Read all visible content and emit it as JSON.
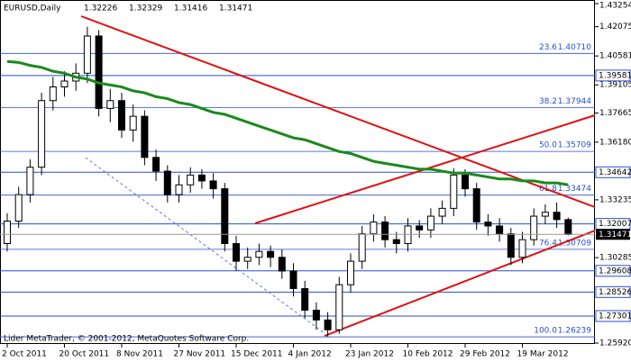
{
  "chart_data": {
    "type": "candlestick",
    "title": "EURUSD,Daily",
    "footer": "Lider MetaTrader, © 2001-2012, MetaQuotes Software Corp.",
    "open": [
      1.31,
      1.3215,
      1.335,
      1.349,
      1.383,
      1.39,
      1.393,
      1.397,
      1.416,
      1.379,
      1.383,
      1.368,
      1.375,
      1.354,
      1.347,
      1.335,
      1.34,
      1.345,
      1.342,
      1.338,
      1.31,
      1.301,
      1.303,
      1.306,
      1.303,
      1.296,
      1.287,
      1.276,
      1.271,
      1.266,
      1.289,
      1.301,
      1.315,
      1.321,
      1.312,
      1.31,
      1.319,
      1.317,
      1.324,
      1.328,
      1.345,
      1.338,
      1.321,
      1.319,
      1.315,
      1.303,
      1.312,
      1.324,
      1.326,
      1.32226
    ],
    "high": [
      1.3255,
      1.339,
      1.353,
      1.387,
      1.395,
      1.398,
      1.402,
      1.4207,
      1.419,
      1.389,
      1.387,
      1.381,
      1.378,
      1.358,
      1.35,
      1.345,
      1.349,
      1.348,
      1.346,
      1.341,
      1.314,
      1.308,
      1.31,
      1.309,
      1.307,
      1.3,
      1.291,
      1.28,
      1.275,
      1.293,
      1.305,
      1.319,
      1.325,
      1.324,
      1.316,
      1.323,
      1.322,
      1.328,
      1.332,
      1.3485,
      1.348,
      1.341,
      1.325,
      1.323,
      1.318,
      1.316,
      1.328,
      1.33,
      1.331,
      1.32329
    ],
    "low": [
      1.306,
      1.318,
      1.331,
      1.345,
      1.378,
      1.385,
      1.388,
      1.392,
      1.375,
      1.372,
      1.364,
      1.362,
      1.35,
      1.342,
      1.331,
      1.331,
      1.336,
      1.338,
      1.333,
      1.306,
      1.296,
      1.297,
      1.299,
      1.298,
      1.292,
      1.283,
      1.272,
      1.266,
      1.2624,
      1.264,
      1.285,
      1.297,
      1.311,
      1.308,
      1.305,
      1.306,
      1.313,
      1.313,
      1.32,
      1.324,
      1.334,
      1.317,
      1.314,
      1.311,
      1.299,
      1.3,
      1.309,
      1.32,
      1.318,
      1.31416
    ],
    "close": [
      1.3215,
      1.335,
      1.349,
      1.383,
      1.39,
      1.393,
      1.397,
      1.416,
      1.379,
      1.383,
      1.368,
      1.375,
      1.354,
      1.347,
      1.335,
      1.34,
      1.345,
      1.342,
      1.338,
      1.31,
      1.301,
      1.303,
      1.306,
      1.303,
      1.296,
      1.287,
      1.276,
      1.271,
      1.266,
      1.289,
      1.301,
      1.315,
      1.321,
      1.312,
      1.31,
      1.319,
      1.317,
      1.324,
      1.328,
      1.345,
      1.338,
      1.321,
      1.319,
      1.315,
      1.303,
      1.312,
      1.324,
      1.326,
      1.32226,
      1.31471
    ],
    "moving_average": {
      "color": "#1a8a1a",
      "values": [
        1.403,
        1.4025,
        1.401,
        1.4,
        1.398,
        1.397,
        1.395,
        1.394,
        1.392,
        1.391,
        1.39,
        1.388,
        1.387,
        1.385,
        1.384,
        1.382,
        1.381,
        1.379,
        1.377,
        1.376,
        1.374,
        1.372,
        1.37,
        1.368,
        1.366,
        1.364,
        1.363,
        1.361,
        1.359,
        1.357,
        1.356,
        1.354,
        1.352,
        1.351,
        1.35,
        1.349,
        1.348,
        1.348,
        1.347,
        1.346,
        1.346,
        1.345,
        1.344,
        1.343,
        1.343,
        1.342,
        1.342,
        1.341,
        1.341,
        1.34
      ]
    },
    "ylim": [
      1.2592,
      1.43254
    ],
    "yticks": [
      1.43254,
      1.42075,
      1.40581,
      1.39105,
      1.37665,
      {
        "value": 1.3618,
        "label": "1.36180"
      },
      1.33235,
      1.30285,
      {
        "value": 1.2592,
        "label": "1.25920"
      }
    ],
    "levels": [
      1.39581,
      1.34642,
      1.32007,
      1.29608,
      1.28526,
      1.27301
    ],
    "fibonacci": [
      {
        "ratio": "23.6",
        "value": 1.4071,
        "label": "1.40710"
      },
      {
        "ratio": "38.2",
        "value": 1.37944
      },
      {
        "ratio": "50.0",
        "value": 1.35709
      },
      {
        "ratio": "61.8",
        "value": 1.33474
      },
      {
        "ratio": "76.4",
        "value": 1.30709
      },
      {
        "ratio": "100.0",
        "value": 1.26239
      }
    ],
    "xticks": [
      {
        "value": 0,
        "label": "2 Oct 2011"
      },
      {
        "value": 5,
        "label": "20 Oct 2011"
      },
      {
        "value": 10,
        "label": "8 Nov 2011"
      },
      {
        "value": 15,
        "label": "27 Nov 2011"
      },
      {
        "value": 20,
        "label": "15 Dec 2011"
      },
      {
        "value": 25,
        "label": "4 Jan 2012"
      },
      {
        "value": 30,
        "label": "23 Jan 2012"
      },
      {
        "value": 35,
        "label": "10 Feb 2012"
      },
      {
        "value": 40,
        "label": "29 Feb 2012"
      },
      {
        "value": 45,
        "label": "19 Mar 2012"
      }
    ]
  }
}
